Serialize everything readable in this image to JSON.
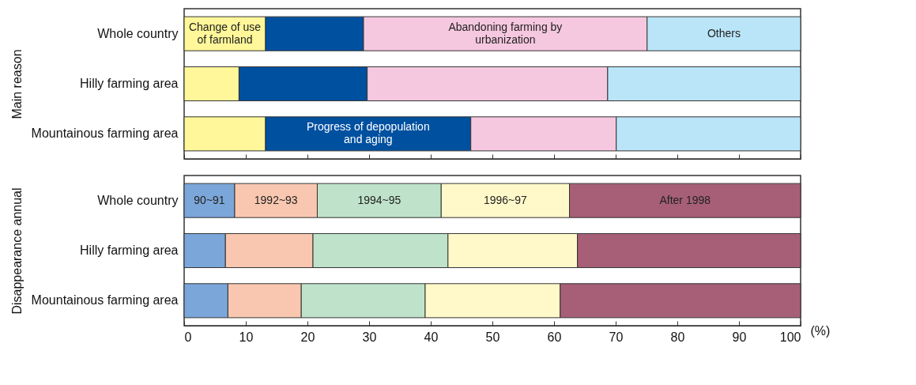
{
  "chart_data": [
    {
      "type": "bar",
      "orientation": "horizontal",
      "stacked": true,
      "ylabel": "Main reason",
      "tick_labels": "y",
      "grid": false,
      "categories": [
        "Whole country",
        "Hilly farming area",
        "Mountainous farming area"
      ],
      "series": [
        {
          "name": "Change of use\nof farmland",
          "color": "#fff799",
          "values": [
            13.2,
            8.9,
            13.2
          ]
        },
        {
          "name": "Progress of depopulation\nand aging",
          "color": "#0050a0",
          "values": [
            15.9,
            20.8,
            33.3
          ]
        },
        {
          "name": "Abandoning farming by\nurbanization",
          "color": "#f6c8df",
          "values": [
            46.0,
            39.0,
            23.6
          ]
        },
        {
          "name": "Others",
          "color": "#bae5f8",
          "values": [
            24.9,
            31.3,
            29.9
          ]
        }
      ],
      "xlim": [
        0,
        100
      ],
      "xticks": [
        0,
        10,
        20,
        30,
        40,
        50,
        60,
        70,
        80,
        90,
        100
      ]
    },
    {
      "type": "bar",
      "orientation": "horizontal",
      "stacked": true,
      "ylabel": "Disappearance annual",
      "xlabel": "(%)",
      "grid": false,
      "categories": [
        "Whole country",
        "Hilly farming area",
        "Mountainous farming area"
      ],
      "series": [
        {
          "name": "90~91",
          "color": "#7ba6d9",
          "values": [
            8.2,
            6.7,
            7.1
          ]
        },
        {
          "name": "1992~93",
          "color": "#f9c7b0",
          "values": [
            13.4,
            14.2,
            11.9
          ]
        },
        {
          "name": "1994~95",
          "color": "#bfe3ca",
          "values": [
            20.1,
            21.9,
            20.1
          ]
        },
        {
          "name": "1996~97",
          "color": "#fff9c9",
          "values": [
            20.8,
            21.0,
            21.9
          ]
        },
        {
          "name": "After 1998",
          "color": "#a65f77",
          "values": [
            37.5,
            36.2,
            39.0
          ]
        }
      ],
      "xlim": [
        0,
        100
      ],
      "xticks": [
        0,
        10,
        20,
        30,
        40,
        50,
        60,
        70,
        80,
        90,
        100
      ]
    }
  ]
}
